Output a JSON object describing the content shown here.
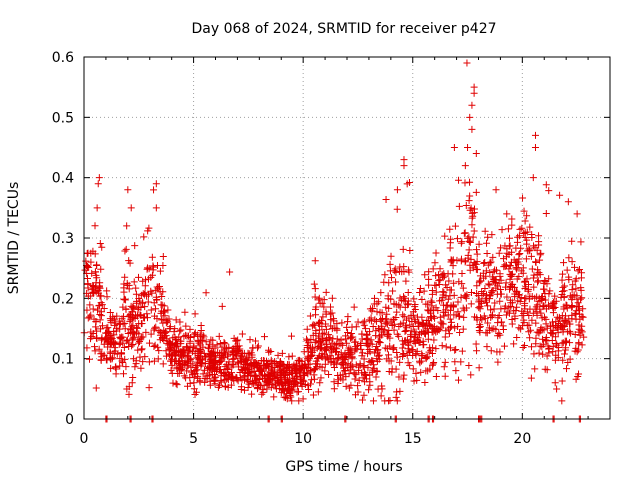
{
  "chart_data": {
    "type": "scatter",
    "title": "Day 068 of 2024, SRMTID for receiver p427",
    "xlabel": "GPS time / hours",
    "ylabel": "SRMTID / TECUs",
    "xlim": [
      0,
      24
    ],
    "ylim": [
      0,
      0.6
    ],
    "xticks": [
      0,
      5,
      10,
      15,
      20
    ],
    "xtick_labels": [
      "0",
      "5",
      "10",
      "15",
      "20"
    ],
    "yticks": [
      0,
      0.1,
      0.2,
      0.3,
      0.4,
      0.5,
      0.6
    ],
    "ytick_labels": [
      "0",
      "0.1",
      "0.2",
      "0.3",
      "0.4",
      "0.5",
      "0.6"
    ],
    "grid": true,
    "marker": "+",
    "series_color": "#e00000",
    "envelope": {
      "hours": [
        0.0,
        0.5,
        1.0,
        1.5,
        2.0,
        2.5,
        3.0,
        3.5,
        4.0,
        4.5,
        5.0,
        5.5,
        6.0,
        6.5,
        7.0,
        7.5,
        8.0,
        8.5,
        9.0,
        9.5,
        10.0,
        10.5,
        11.0,
        11.5,
        12.0,
        12.5,
        13.0,
        13.5,
        14.0,
        14.5,
        15.0,
        15.5,
        16.0,
        16.5,
        17.0,
        17.5,
        18.0,
        18.5,
        19.0,
        19.5,
        20.0,
        20.5,
        21.0,
        21.5,
        22.0,
        22.5,
        22.8
      ],
      "median": [
        0.22,
        0.19,
        0.14,
        0.12,
        0.17,
        0.15,
        0.19,
        0.17,
        0.11,
        0.1,
        0.11,
        0.1,
        0.09,
        0.09,
        0.09,
        0.08,
        0.08,
        0.07,
        0.07,
        0.06,
        0.07,
        0.12,
        0.13,
        0.12,
        0.1,
        0.1,
        0.12,
        0.13,
        0.14,
        0.17,
        0.15,
        0.14,
        0.16,
        0.18,
        0.2,
        0.26,
        0.21,
        0.2,
        0.18,
        0.22,
        0.23,
        0.21,
        0.18,
        0.15,
        0.16,
        0.17,
        0.17
      ],
      "spread": [
        0.08,
        0.1,
        0.05,
        0.04,
        0.1,
        0.06,
        0.1,
        0.06,
        0.04,
        0.04,
        0.05,
        0.04,
        0.04,
        0.04,
        0.04,
        0.03,
        0.03,
        0.03,
        0.03,
        0.03,
        0.04,
        0.07,
        0.06,
        0.05,
        0.05,
        0.06,
        0.07,
        0.07,
        0.1,
        0.12,
        0.08,
        0.07,
        0.07,
        0.1,
        0.14,
        0.15,
        0.1,
        0.09,
        0.08,
        0.09,
        0.1,
        0.12,
        0.08,
        0.08,
        0.09,
        0.1,
        0.07
      ],
      "point_count": 2400
    },
    "outliers": [
      {
        "x": 0.7,
        "y": 0.4
      },
      {
        "x": 0.65,
        "y": 0.39
      },
      {
        "x": 0.6,
        "y": 0.35
      },
      {
        "x": 2.0,
        "y": 0.38
      },
      {
        "x": 3.3,
        "y": 0.39
      },
      {
        "x": 3.3,
        "y": 0.35
      },
      {
        "x": 14.3,
        "y": 0.38
      },
      {
        "x": 14.6,
        "y": 0.43
      },
      {
        "x": 14.6,
        "y": 0.42
      },
      {
        "x": 16.9,
        "y": 0.45
      },
      {
        "x": 17.5,
        "y": 0.45
      },
      {
        "x": 17.6,
        "y": 0.5
      },
      {
        "x": 17.7,
        "y": 0.52
      },
      {
        "x": 17.8,
        "y": 0.54
      },
      {
        "x": 17.8,
        "y": 0.55
      },
      {
        "x": 17.7,
        "y": 0.48
      },
      {
        "x": 17.9,
        "y": 0.44
      },
      {
        "x": 17.4,
        "y": 0.42
      },
      {
        "x": 20.6,
        "y": 0.47
      },
      {
        "x": 20.6,
        "y": 0.45
      },
      {
        "x": 20.5,
        "y": 0.4
      },
      {
        "x": 22.1,
        "y": 0.36
      },
      {
        "x": 22.5,
        "y": 0.34
      },
      {
        "x": 18.8,
        "y": 0.38
      },
      {
        "x": 21.5,
        "y": 0.06
      },
      {
        "x": 2.2,
        "y": 0.06
      },
      {
        "x": 13.6,
        "y": 0.05
      }
    ],
    "zero_hours": [
      1.0,
      2.1,
      3.1,
      8.4,
      9.0,
      11.9,
      14.2,
      15.7,
      15.9,
      18.0,
      18.1,
      21.4,
      22.6
    ]
  }
}
